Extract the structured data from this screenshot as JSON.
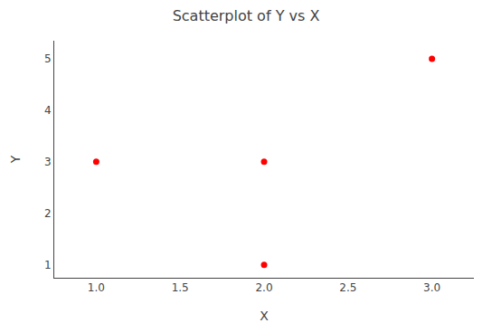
{
  "chart_data": {
    "type": "scatter",
    "title": "Scatterplot of Y vs X",
    "xlabel": "X",
    "ylabel": "Y",
    "x": [
      1,
      2,
      2,
      3
    ],
    "values": [
      3,
      3,
      1,
      5
    ],
    "color": "#ff0000",
    "xlim": [
      0.75,
      3.25
    ],
    "ylim": [
      0.75,
      5.35
    ],
    "xticks": [
      {
        "value": 1,
        "label": "1.0"
      },
      1.5,
      {
        "value": 2,
        "label": "2.0"
      },
      2.5,
      {
        "value": 3,
        "label": "3.0"
      }
    ],
    "yticks": [
      1,
      2,
      3,
      4,
      5
    ],
    "grid": false
  }
}
